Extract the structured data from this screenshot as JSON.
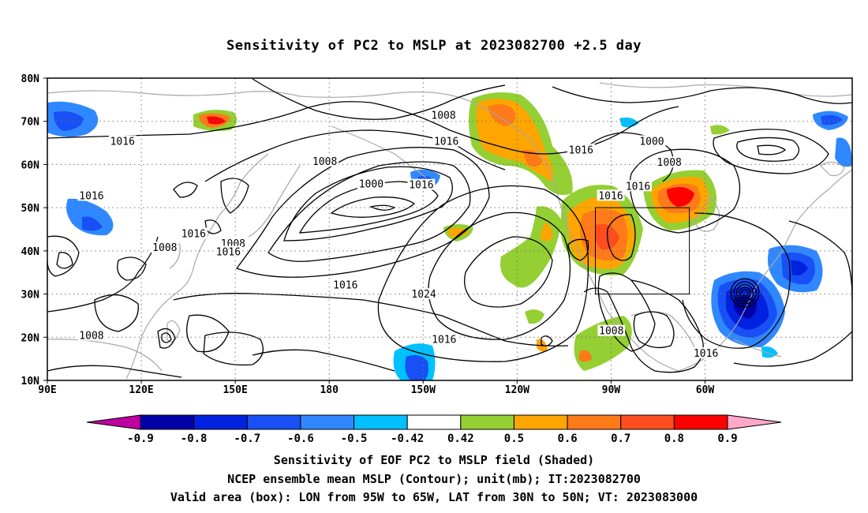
{
  "title": "Sensitivity of PC2 to MSLP at 2023082700 +2.5 day",
  "map": {
    "lat_labels": [
      "80N",
      "70N",
      "60N",
      "50N",
      "40N",
      "30N",
      "20N",
      "10N"
    ],
    "lon_labels": [
      "90E",
      "120E",
      "150E",
      "180",
      "150W",
      "120W",
      "90W",
      "60W"
    ],
    "contour_labels": [
      {
        "text": "1008",
        "lon": -143.5,
        "lat": 71.3
      },
      {
        "text": "1016",
        "lon": -142.6,
        "lat": 65.3
      },
      {
        "text": "1016",
        "lon": 114,
        "lat": 65.3
      },
      {
        "text": "1016",
        "lon": -99.6,
        "lat": 63.3
      },
      {
        "text": "1000",
        "lon": -77,
        "lat": 65.3
      },
      {
        "text": "1008",
        "lon": -71.4,
        "lat": 60.4
      },
      {
        "text": "1008",
        "lon": 178.6,
        "lat": 60.6
      },
      {
        "text": "1000",
        "lon": -166.6,
        "lat": 55.4
      },
      {
        "text": "1016",
        "lon": -150.6,
        "lat": 55.2
      },
      {
        "text": "1016",
        "lon": -81.4,
        "lat": 54.9
      },
      {
        "text": "1016",
        "lon": -90.1,
        "lat": 52.7
      },
      {
        "text": "1016",
        "lon": 104.1,
        "lat": 52.7
      },
      {
        "text": "1008",
        "lon": 127.5,
        "lat": 40.7
      },
      {
        "text": "1016",
        "lon": 136.7,
        "lat": 43.9
      },
      {
        "text": "1008",
        "lon": 149.3,
        "lat": 41.6
      },
      {
        "text": "1016",
        "lon": 147.8,
        "lat": 39.7
      },
      {
        "text": "1016",
        "lon": -174.8,
        "lat": 32.0
      },
      {
        "text": "1024",
        "lon": -149.8,
        "lat": 29.9
      },
      {
        "text": "1008",
        "lon": 104.1,
        "lat": 20.3
      },
      {
        "text": "1016",
        "lon": -143.3,
        "lat": 19.4
      },
      {
        "text": "1008",
        "lon": -89.9,
        "lat": 21.4
      },
      {
        "text": "1016",
        "lon": -59.7,
        "lat": 16.2
      }
    ],
    "valid_box": {
      "lon_min": -95,
      "lon_max": -65,
      "lat_min": 30,
      "lat_max": 50
    }
  },
  "colorbar": {
    "labels": [
      "-0.9",
      "-0.8",
      "-0.7",
      "-0.6",
      "-0.5",
      "-0.42",
      "0.42",
      "0.5",
      "0.6",
      "0.7",
      "0.8",
      "0.9"
    ],
    "colors": [
      "#0000a8",
      "#0022e0",
      "#1850f5",
      "#2f88ff",
      "#00c0ff",
      "#ffffff",
      "#94cf33",
      "#ffa500",
      "#ff7a18",
      "#ff4d1e",
      "#ff0000"
    ],
    "low_end_color": "#c000a0",
    "high_end_color": "#ffa8c8"
  },
  "captions": {
    "line1": "Sensitivity of EOF PC2 to MSLP field (Shaded)",
    "line2": "NCEP ensemble mean MSLP (Contour); unit(mb); IT:2023082700",
    "line3": "Valid area (box): LON from 95W to 65W, LAT from 30N to 50N; VT: 2023083000"
  }
}
